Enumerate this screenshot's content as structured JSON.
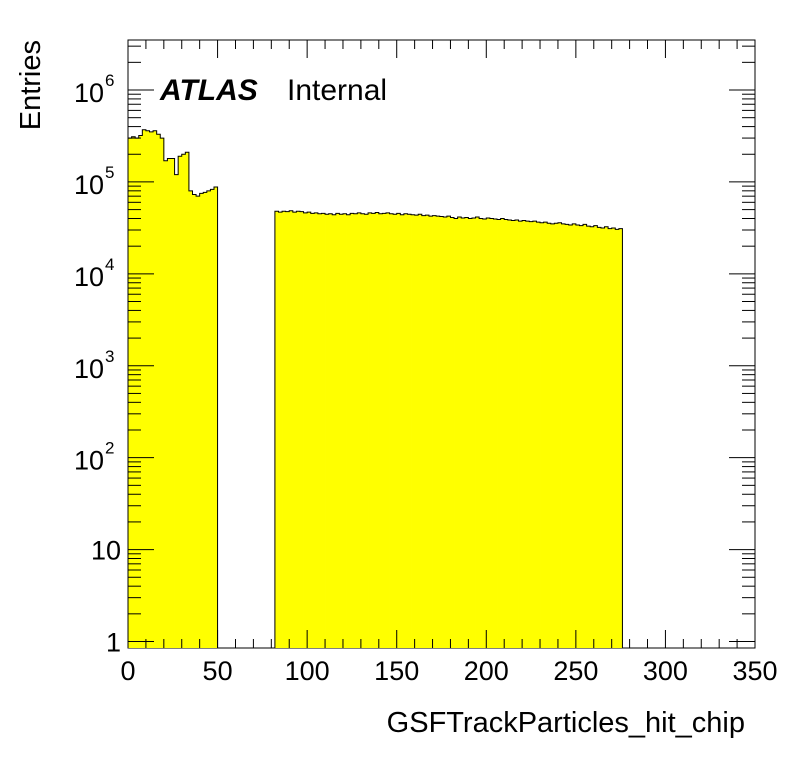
{
  "chart_data": {
    "type": "bar",
    "subtype": "histogram",
    "xlabel": "GSFTrackParticles_hit_chip",
    "ylabel": "Entries",
    "watermark": {
      "experiment": "ATLAS",
      "status": "Internal"
    },
    "xlim": [
      0,
      350
    ],
    "ylim": [
      0.85,
      3500000
    ],
    "yscale": "log",
    "grid": false,
    "legend": "none",
    "fill_color": "#ffff00",
    "line_color": "#000000",
    "x_ticks": [
      "0",
      "50",
      "100",
      "150",
      "200",
      "250",
      "300",
      "350"
    ],
    "y_ticks": [
      {
        "value": 1,
        "base": "1",
        "exp": ""
      },
      {
        "value": 10,
        "base": "10",
        "exp": ""
      },
      {
        "value": 100,
        "base": "10",
        "exp": "2"
      },
      {
        "value": 1000,
        "base": "10",
        "exp": "3"
      },
      {
        "value": 10000,
        "base": "10",
        "exp": "4"
      },
      {
        "value": 100000,
        "base": "10",
        "exp": "5"
      },
      {
        "value": 1000000,
        "base": "10",
        "exp": "6"
      }
    ],
    "bin_width": 2,
    "bin_start": 0,
    "values": [
      300000,
      310000,
      300000,
      320000,
      370000,
      360000,
      350000,
      360000,
      330000,
      300000,
      170000,
      180000,
      180000,
      120000,
      190000,
      200000,
      210000,
      80000,
      73000,
      70000,
      75000,
      77000,
      80000,
      83000,
      88000,
      0,
      0,
      0,
      0,
      0,
      0,
      0,
      0,
      0,
      0,
      0,
      0,
      0,
      0,
      0,
      0,
      48000,
      47000,
      48000,
      47500,
      48500,
      47000,
      48000,
      47500,
      46000,
      47000,
      45500,
      46000,
      45000,
      45500,
      44500,
      45000,
      44000,
      45500,
      44500,
      45000,
      44000,
      45500,
      45000,
      46000,
      45000,
      44500,
      46000,
      45500,
      46500,
      45000,
      45500,
      46000,
      45000,
      44500,
      45500,
      44000,
      45000,
      44500,
      44000,
      43500,
      44500,
      43000,
      43500,
      42500,
      43000,
      42500,
      42000,
      41500,
      42500,
      41000,
      40000,
      41500,
      40500,
      41000,
      40000,
      40500,
      41500,
      40000,
      39500,
      40500,
      40000,
      39500,
      39000,
      40000,
      39000,
      38500,
      38000,
      38500,
      37500,
      38000,
      37500,
      37000,
      37500,
      36500,
      36000,
      36500,
      35500,
      35000,
      35500,
      36000,
      35000,
      34500,
      34000,
      35000,
      34000,
      33500,
      34500,
      33000,
      32500,
      33500,
      32000,
      31500,
      32500,
      31000,
      31500,
      30500,
      31000
    ]
  }
}
